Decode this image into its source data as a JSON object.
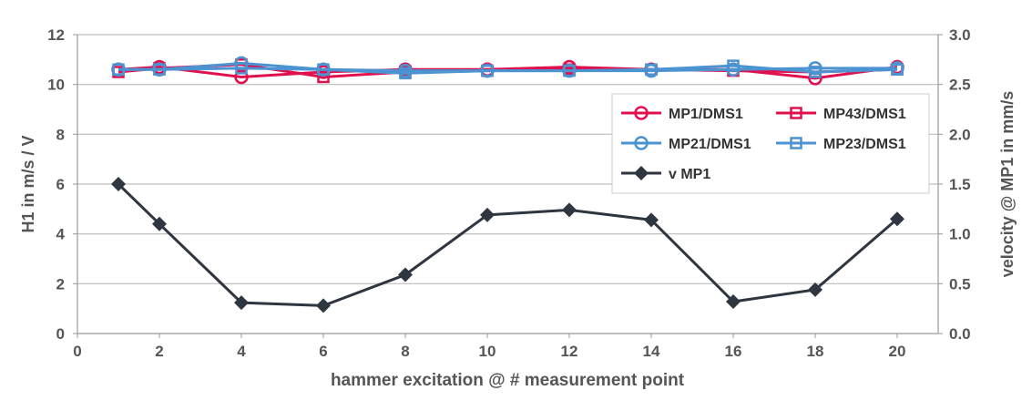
{
  "chart_data": {
    "type": "line",
    "title": "",
    "xlabel": "hammer excitation @ # measurement point",
    "ylabel": "H1 in m/s / V",
    "y2label": "velocity @ MP1 in mm/s",
    "xlim": [
      0,
      21
    ],
    "ylim": [
      0,
      12
    ],
    "y2lim": [
      0,
      3
    ],
    "xticks": [
      "0",
      "2",
      "4",
      "6",
      "8",
      "10",
      "12",
      "14",
      "16",
      "18",
      "20"
    ],
    "yticks": [
      "0",
      "2",
      "4",
      "6",
      "8",
      "10",
      "12"
    ],
    "y2ticks": [
      "0.0",
      "0.5",
      "1.0",
      "1.5",
      "2.0",
      "2.5",
      "3.0"
    ],
    "grid": "horizontal",
    "legend_position": "right",
    "x": [
      1,
      2,
      4,
      6,
      8,
      10,
      12,
      14,
      16,
      18,
      20
    ],
    "series": [
      {
        "name": "MP1/DMS1",
        "axis": "left",
        "marker": "circle",
        "color": "#e0104f",
        "values": [
          10.6,
          10.7,
          10.3,
          10.5,
          10.6,
          10.6,
          10.7,
          10.6,
          10.6,
          10.25,
          10.7
        ]
      },
      {
        "name": "MP43/DMS1",
        "axis": "left",
        "marker": "square",
        "color": "#e0104f",
        "values": [
          10.5,
          10.65,
          10.8,
          10.3,
          10.5,
          10.55,
          10.6,
          10.6,
          10.55,
          10.5,
          10.6
        ]
      },
      {
        "name": "MP21/DMS1",
        "axis": "left",
        "marker": "circle",
        "color": "#4b93d1",
        "values": [
          10.6,
          10.6,
          10.85,
          10.6,
          10.55,
          10.55,
          10.55,
          10.55,
          10.6,
          10.65,
          10.65
        ]
      },
      {
        "name": "MP23/DMS1",
        "axis": "left",
        "marker": "square",
        "color": "#4b93d1",
        "values": [
          10.6,
          10.6,
          10.65,
          10.6,
          10.45,
          10.55,
          10.55,
          10.6,
          10.75,
          10.5,
          10.6
        ]
      },
      {
        "name": "v MP1",
        "axis": "right",
        "marker": "diamond",
        "color": "#2f3640",
        "values": [
          1.5,
          1.1,
          0.31,
          0.28,
          0.59,
          1.19,
          1.24,
          1.14,
          0.32,
          0.44,
          1.15
        ]
      }
    ]
  }
}
